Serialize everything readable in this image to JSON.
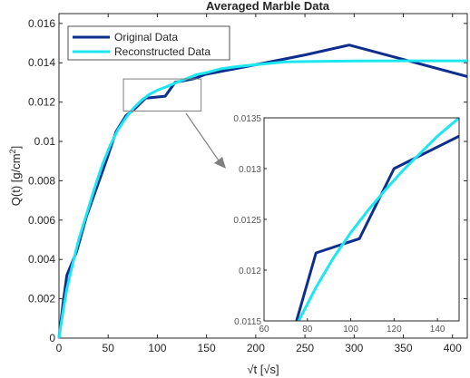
{
  "chart_data": {
    "type": "line",
    "title": "Averaged Marble Data",
    "xlabel": "√t [√s]",
    "ylabel_main": "Q(t) [g/cm",
    "ylabel_sup": "2",
    "ylabel_end": "]",
    "xlim": [
      0,
      415
    ],
    "ylim": [
      0,
      0.0165
    ],
    "x_ticks": [
      "0",
      "50",
      "100",
      "150",
      "200",
      "250",
      "300",
      "350",
      "400"
    ],
    "y_ticks": [
      "0",
      "0.002",
      "0.004",
      "0.006",
      "0.008",
      "0.01",
      "0.012",
      "0.014",
      "0.016"
    ],
    "grid": false,
    "legend_position": "top-left",
    "colors": {
      "original": "#0d2e8c",
      "reconstructed": "#1ee6f0",
      "zoom_box": "#808080"
    },
    "series": [
      {
        "name": "Original Data",
        "x": [
          0,
          4,
          8,
          18,
          28,
          38,
          48,
          58,
          68,
          78,
          88,
          98,
          108,
          118,
          128,
          138,
          148,
          200,
          250,
          295,
          340,
          415
        ],
        "y": [
          0,
          0.0017,
          0.0032,
          0.0044,
          0.0062,
          0.0076,
          0.009,
          0.0105,
          0.0113,
          0.0117,
          0.0122,
          0.01225,
          0.0123,
          0.013,
          0.0131,
          0.0132,
          0.0134,
          0.0139,
          0.0144,
          0.0149,
          0.0143,
          0.0133
        ]
      },
      {
        "name": "Reconstructed Data",
        "x": [
          0,
          4,
          8,
          14,
          20,
          28,
          36,
          44,
          52,
          60,
          68,
          76,
          84,
          92,
          100,
          110,
          120,
          130,
          140,
          150,
          165,
          180,
          200,
          230,
          260,
          300,
          350,
          415
        ],
        "y": [
          0,
          0.0013,
          0.0025,
          0.0038,
          0.005,
          0.0063,
          0.0076,
          0.0088,
          0.0098,
          0.0106,
          0.0112,
          0.0117,
          0.0121,
          0.0124,
          0.0126,
          0.0128,
          0.013,
          0.0132,
          0.0134,
          0.0135,
          0.0137,
          0.0138,
          0.0139,
          0.01405,
          0.01407,
          0.01409,
          0.0141,
          0.0141
        ]
      }
    ],
    "inset": {
      "xlim": [
        60,
        150
      ],
      "ylim": [
        0.0115,
        0.0135
      ],
      "x_ticks": [
        "60",
        "80",
        "100",
        "120",
        "140"
      ],
      "y_ticks": [
        "0.0115",
        "0.012",
        "0.0125",
        "0.013",
        "0.0135"
      ],
      "series": [
        {
          "name": "Original Data",
          "x": [
            75,
            84,
            104,
            120,
            150
          ],
          "y": [
            0.0115,
            0.01217,
            0.01231,
            0.013,
            0.01332
          ]
        },
        {
          "name": "Reconstructed Data",
          "x": [
            76,
            84,
            92,
            100,
            108,
            116,
            124,
            132,
            140,
            150
          ],
          "y": [
            0.0115,
            0.01183,
            0.01212,
            0.01237,
            0.01259,
            0.01279,
            0.01298,
            0.01315,
            0.01332,
            0.0135
          ]
        }
      ]
    },
    "zoom_box": {
      "xlim": [
        60,
        150
      ],
      "ylim": [
        0.0115,
        0.0135
      ]
    }
  }
}
